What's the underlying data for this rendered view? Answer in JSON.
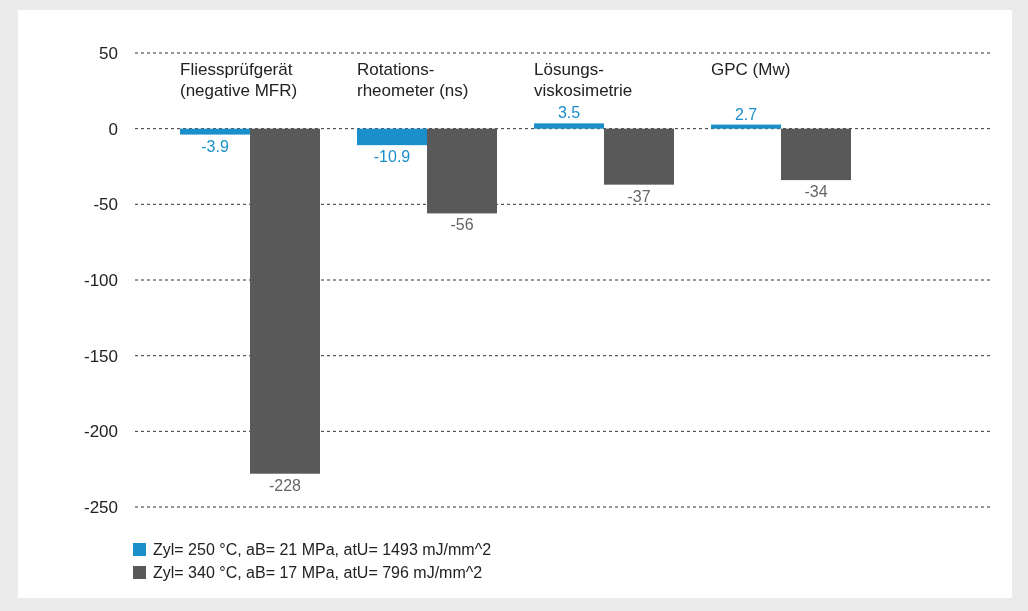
{
  "chart_data": {
    "type": "bar",
    "categories": [
      "Fliessprüfgerät\n(negative MFR)",
      "Rotations-\nrheometer (ns)",
      "Lösungs-\nviskosimetrie",
      "GPC (Mw)"
    ],
    "series": [
      {
        "name": "Zyl= 250 °C, aB= 21 MPa, atU= 1493 mJ/mm^2",
        "color": "#1a8fc9",
        "values": [
          -3.9,
          -10.9,
          3.5,
          2.7
        ]
      },
      {
        "name": "Zyl= 340 °C, aB= 17 MPa, atU= 796 mJ/mm^2",
        "color": "#595959",
        "values": [
          -228,
          -56,
          -37,
          -34
        ]
      }
    ],
    "ylim": [
      -250,
      50
    ],
    "yticks": [
      -250,
      -200,
      -150,
      -100,
      -50,
      0,
      50
    ],
    "grid": "y",
    "legend": "bottom left",
    "data_labels": true
  }
}
